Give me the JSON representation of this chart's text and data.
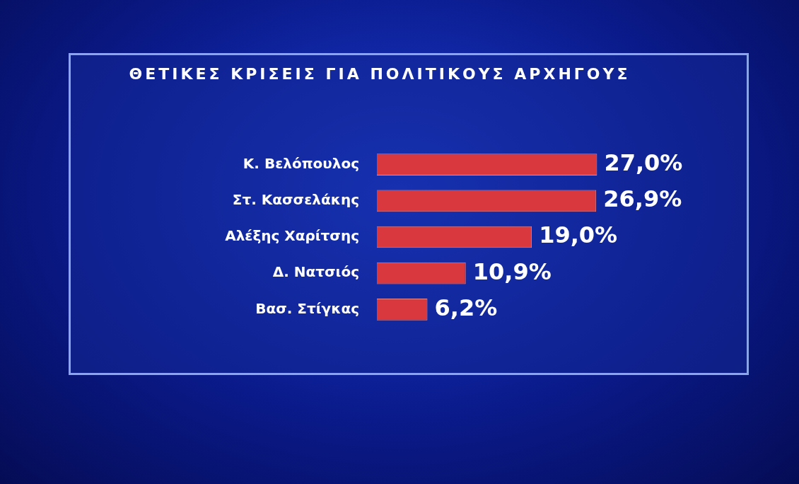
{
  "chart_data": {
    "type": "bar",
    "orientation": "horizontal",
    "title": "ΘΕΤΙΚΕΣ ΚΡΙΣΕΙΣ ΓΙΑ ΠΟΛΙΤΙΚΟΥΣ ΑΡΧΗΓΟΥΣ",
    "categories": [
      "Κ. Βελόπουλος",
      "Στ. Κασσελάκης",
      "Αλέξης Χαρίτσης",
      "Δ. Νατσιός",
      "Βασ. Στίγκας"
    ],
    "values": [
      27.0,
      26.9,
      19.0,
      10.9,
      6.2
    ],
    "value_labels": [
      "27,0%",
      "26,9%",
      "19,0%",
      "10,9%",
      "6,2%"
    ],
    "color": "#d8383e",
    "grid": false,
    "legend": false,
    "tick_labels": "y"
  }
}
